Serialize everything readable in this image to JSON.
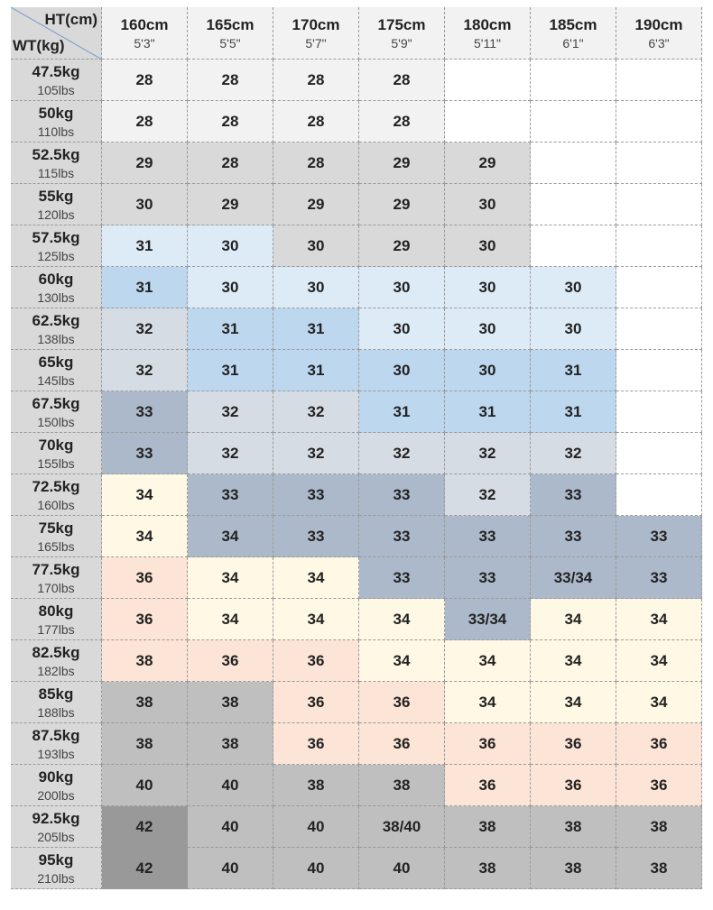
{
  "header": {
    "corner": {
      "height_label": "HT(cm)",
      "weight_label": "WT(kg)"
    },
    "columns": [
      {
        "cm": "160cm",
        "ft": "5'3\""
      },
      {
        "cm": "165cm",
        "ft": "5'5\""
      },
      {
        "cm": "170cm",
        "ft": "5'7\""
      },
      {
        "cm": "175cm",
        "ft": "5'9\""
      },
      {
        "cm": "180cm",
        "ft": "5'11\""
      },
      {
        "cm": "185cm",
        "ft": "6'1\""
      },
      {
        "cm": "190cm",
        "ft": "6'3\""
      }
    ]
  },
  "rows": [
    {
      "kg": "47.5kg",
      "lbs": "105lbs",
      "cells": [
        "28",
        "28",
        "28",
        "28",
        null,
        null,
        null
      ]
    },
    {
      "kg": "50kg",
      "lbs": "110lbs",
      "cells": [
        "28",
        "28",
        "28",
        "28",
        null,
        null,
        null
      ]
    },
    {
      "kg": "52.5kg",
      "lbs": "115lbs",
      "cells": [
        "29",
        "28",
        "28",
        "29",
        "29",
        null,
        null
      ]
    },
    {
      "kg": "55kg",
      "lbs": "120lbs",
      "cells": [
        "30",
        "29",
        "29",
        "29",
        "30",
        null,
        null
      ]
    },
    {
      "kg": "57.5kg",
      "lbs": "125lbs",
      "cells": [
        "31",
        "30",
        "30",
        "29",
        "30",
        null,
        null
      ]
    },
    {
      "kg": "60kg",
      "lbs": "130lbs",
      "cells": [
        "31",
        "30",
        "30",
        "30",
        "30",
        "30",
        null
      ]
    },
    {
      "kg": "62.5kg",
      "lbs": "138lbs",
      "cells": [
        "32",
        "31",
        "31",
        "30",
        "30",
        "30",
        null
      ]
    },
    {
      "kg": "65kg",
      "lbs": "145lbs",
      "cells": [
        "32",
        "31",
        "31",
        "30",
        "30",
        "31",
        null
      ]
    },
    {
      "kg": "67.5kg",
      "lbs": "150lbs",
      "cells": [
        "33",
        "32",
        "32",
        "31",
        "31",
        "31",
        null
      ]
    },
    {
      "kg": "70kg",
      "lbs": "155lbs",
      "cells": [
        "33",
        "32",
        "32",
        "32",
        "32",
        "32",
        null
      ]
    },
    {
      "kg": "72.5kg",
      "lbs": "160lbs",
      "cells": [
        "34",
        "33",
        "33",
        "33",
        "32",
        "33",
        null
      ]
    },
    {
      "kg": "75kg",
      "lbs": "165lbs",
      "cells": [
        "34",
        "34",
        "33",
        "33",
        "33",
        "33",
        "33"
      ]
    },
    {
      "kg": "77.5kg",
      "lbs": "170lbs",
      "cells": [
        "36",
        "34",
        "34",
        "33",
        "33",
        "33/34",
        "33"
      ]
    },
    {
      "kg": "80kg",
      "lbs": "177lbs",
      "cells": [
        "36",
        "34",
        "34",
        "34",
        "33/34",
        "34",
        "34"
      ]
    },
    {
      "kg": "82.5kg",
      "lbs": "182lbs",
      "cells": [
        "38",
        "36",
        "36",
        "34",
        "34",
        "34",
        "34"
      ]
    },
    {
      "kg": "85kg",
      "lbs": "188lbs",
      "cells": [
        "38",
        "38",
        "36",
        "36",
        "34",
        "34",
        "34"
      ]
    },
    {
      "kg": "87.5kg",
      "lbs": "193lbs",
      "cells": [
        "38",
        "38",
        "36",
        "36",
        "36",
        "36",
        "36"
      ]
    },
    {
      "kg": "90kg",
      "lbs": "200lbs",
      "cells": [
        "40",
        "40",
        "38",
        "38",
        "36",
        "36",
        "36"
      ]
    },
    {
      "kg": "92.5kg",
      "lbs": "205lbs",
      "cells": [
        "42",
        "40",
        "40",
        "38/40",
        "38",
        "38",
        "38"
      ]
    },
    {
      "kg": "95kg",
      "lbs": "210lbs",
      "cells": [
        "42",
        "40",
        "40",
        "40",
        "38",
        "38",
        "38"
      ]
    }
  ]
}
